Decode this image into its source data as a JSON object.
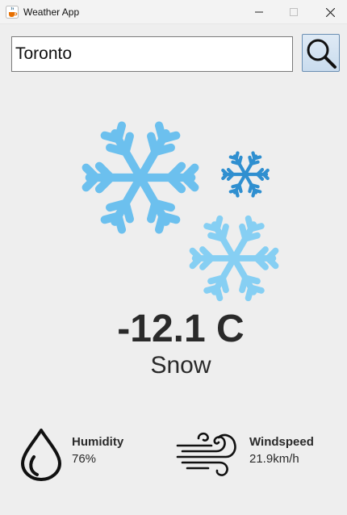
{
  "window": {
    "title": "Weather App",
    "app_icon": "java-cup-icon",
    "controls": [
      "minimize-icon",
      "maximize-icon",
      "close-icon"
    ]
  },
  "search": {
    "value": "Toronto",
    "button_icon": "magnifier-icon"
  },
  "weather": {
    "icon": "snow-icon",
    "temperature": "-12.1 C",
    "condition": "Snow"
  },
  "humidity": {
    "icon": "droplet-icon",
    "label": "Humidity",
    "value": "76%"
  },
  "windspeed": {
    "icon": "wind-icon",
    "label": "Windspeed",
    "value": "21.9km/h"
  },
  "colors": {
    "snow_primary": "#6cc0ee",
    "snow_small": "#2f8fd0",
    "snow_light": "#86cff3",
    "text": "#2a2a2a",
    "background": "#eeeeee"
  }
}
